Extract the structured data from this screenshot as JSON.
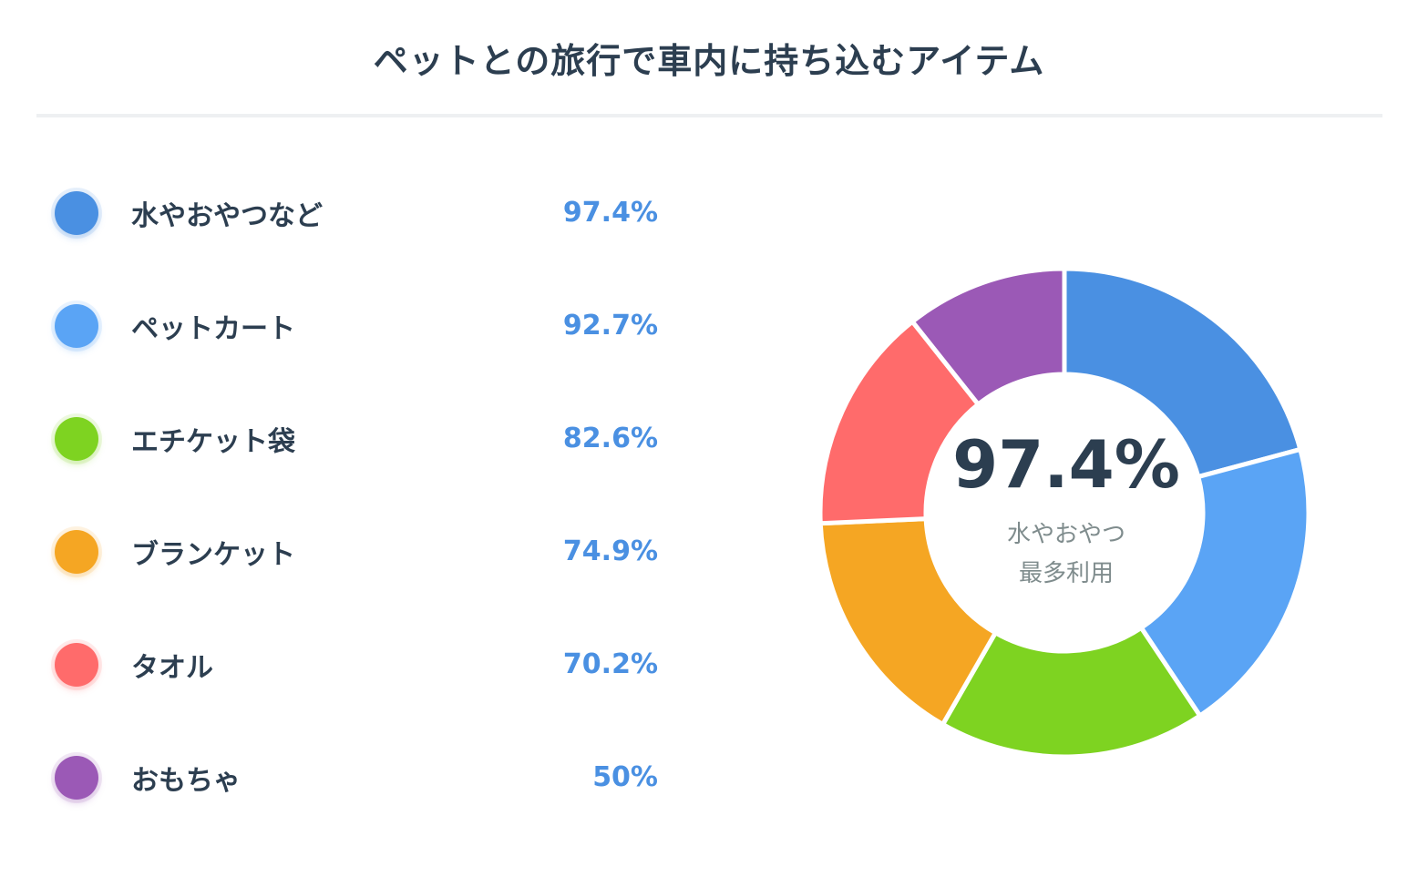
{
  "title": "ペットとの旅行で車内に持ち込むアイテム",
  "center": {
    "value": "97.4%",
    "line1": "水やおやつ",
    "line2": "最多利用"
  },
  "legend": [
    {
      "label": "水やおやつなど",
      "value": "97.4%",
      "color": "#4a90e2"
    },
    {
      "label": "ペットカート",
      "value": "92.7%",
      "color": "#5aa4f5"
    },
    {
      "label": "エチケット袋",
      "value": "82.6%",
      "color": "#7ed321"
    },
    {
      "label": "ブランケット",
      "value": "74.9%",
      "color": "#f5a623"
    },
    {
      "label": "タオル",
      "value": "70.2%",
      "color": "#ff6b6b"
    },
    {
      "label": "おもちゃ",
      "value": "50%",
      "color": "#9b59b6"
    }
  ],
  "chart_data": {
    "type": "pie",
    "categories": [
      "水やおやつなど",
      "ペットカート",
      "エチケット袋",
      "ブランケット",
      "タオル",
      "おもちゃ"
    ],
    "values": [
      97.4,
      92.7,
      82.6,
      74.9,
      70.2,
      50
    ],
    "colors": [
      "#4a90e2",
      "#5aa4f5",
      "#7ed321",
      "#f5a623",
      "#ff6b6b",
      "#9b59b6"
    ],
    "title": "ペットとの旅行で車内に持ち込むアイテム",
    "legend_position": "left"
  }
}
